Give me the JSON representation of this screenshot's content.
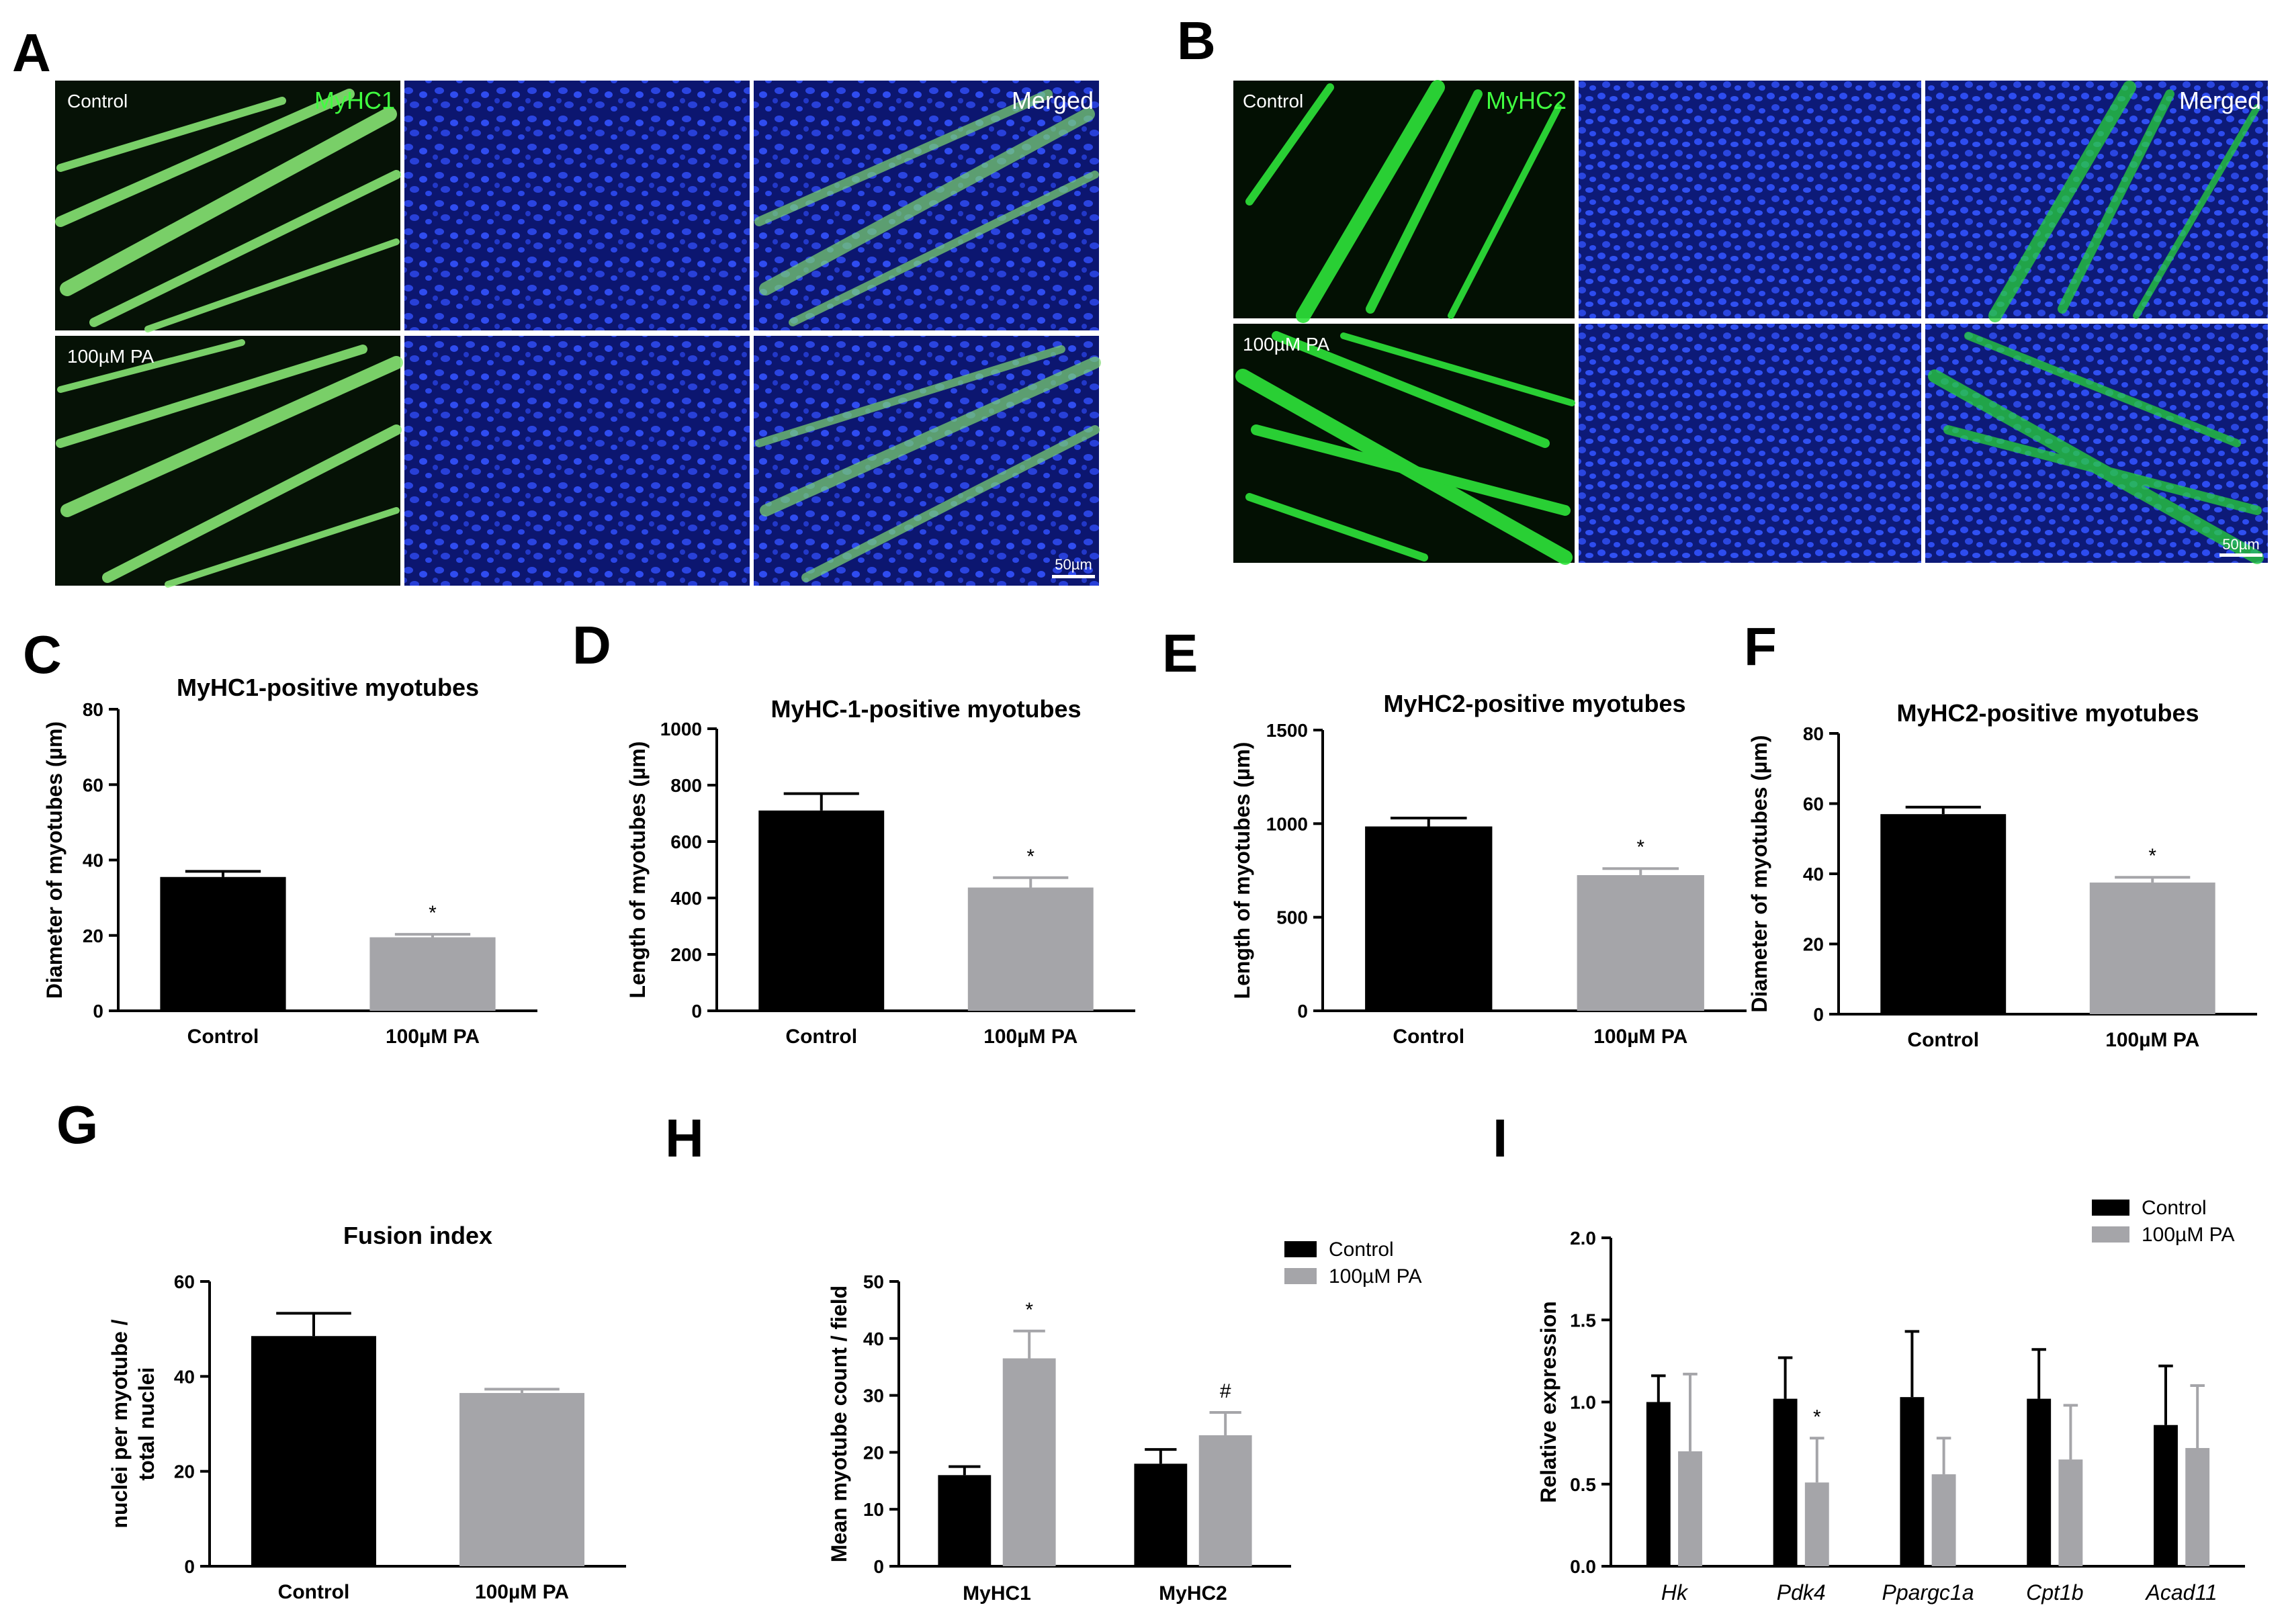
{
  "colors": {
    "control": "#000000",
    "pa": "#a5a5a9",
    "green": "#3cf050",
    "blue": "#1a2bb8"
  },
  "panel_labels": [
    "A",
    "B",
    "C",
    "D",
    "E",
    "F",
    "G",
    "H",
    "I"
  ],
  "micrographs": {
    "A": {
      "marker": "MyHC1",
      "row_labels": [
        "Control",
        "100µM PA"
      ],
      "merged": "Merged",
      "scale_bar": "50µm"
    },
    "B": {
      "marker": "MyHC2",
      "row_labels": [
        "Control",
        "100µM PA"
      ],
      "merged": "Merged",
      "scale_bar": "50µm"
    }
  },
  "chart_data": [
    {
      "id": "C",
      "type": "bar",
      "title": "MyHC1-positive myotubes",
      "ylabel": "Diameter of myotubes (µm)",
      "categories": [
        "Control",
        "100µM PA"
      ],
      "values": [
        35.5,
        19.5
      ],
      "errors": [
        1.5,
        0.8
      ],
      "ylim": [
        0,
        80
      ],
      "yticks": [
        0,
        20,
        40,
        60,
        80
      ],
      "significance": [
        "",
        "*"
      ]
    },
    {
      "id": "D",
      "type": "bar",
      "title": "MyHC-1-positive myotubes",
      "ylabel": "Length of myotubes (µm)",
      "categories": [
        "Control",
        "100µM PA"
      ],
      "values": [
        710,
        437
      ],
      "errors": [
        60,
        35
      ],
      "ylim": [
        0,
        1000
      ],
      "yticks": [
        0,
        200,
        400,
        600,
        800,
        1000
      ],
      "significance": [
        "",
        "*"
      ]
    },
    {
      "id": "E",
      "type": "bar",
      "title": "MyHC2-positive myotubes",
      "ylabel": "Length of myotubes (µm)",
      "categories": [
        "Control",
        "100µM PA"
      ],
      "values": [
        985,
        725
      ],
      "errors": [
        45,
        35
      ],
      "ylim": [
        0,
        1500
      ],
      "yticks": [
        0,
        500,
        1000,
        1500
      ],
      "significance": [
        "",
        "*"
      ]
    },
    {
      "id": "F",
      "type": "bar",
      "title": "MyHC2-positive myotubes",
      "ylabel": "Diameter of myotubes (µm)",
      "categories": [
        "Control",
        "100µM PA"
      ],
      "values": [
        57,
        37.5
      ],
      "errors": [
        2,
        1.5
      ],
      "ylim": [
        0,
        80
      ],
      "yticks": [
        0,
        20,
        40,
        60,
        80
      ],
      "significance": [
        "",
        "*"
      ]
    },
    {
      "id": "G",
      "type": "bar",
      "title": "Fusion index",
      "ylabel": [
        "nuclei per myotube /",
        "total nuclei"
      ],
      "categories": [
        "Control",
        "100µM PA"
      ],
      "values": [
        48.5,
        36.5
      ],
      "errors": [
        4.8,
        0.8
      ],
      "ylim": [
        0,
        60
      ],
      "yticks": [
        0,
        20,
        40,
        60
      ],
      "significance": [
        "",
        ""
      ]
    },
    {
      "id": "H",
      "type": "bar",
      "title": "",
      "ylabel": "Mean myotube count / field",
      "categories": [
        "MyHC1",
        "MyHC2"
      ],
      "ylim": [
        0,
        50
      ],
      "yticks": [
        0,
        10,
        20,
        30,
        40,
        50
      ],
      "legend": "top-right",
      "series": [
        {
          "name": "Control",
          "values": [
            16,
            18
          ],
          "errors": [
            1.5,
            2.5
          ],
          "significance": [
            "",
            ""
          ]
        },
        {
          "name": "100µM PA",
          "values": [
            36.5,
            23
          ],
          "errors": [
            4.8,
            4
          ],
          "significance": [
            "*",
            "#"
          ]
        }
      ]
    },
    {
      "id": "I",
      "type": "bar",
      "title": "",
      "ylabel": "Relative expression",
      "categories": [
        "Hk",
        "Pdk4",
        "Ppargc1a",
        "Cpt1b",
        "Acad11"
      ],
      "ylim": [
        0,
        2.0
      ],
      "yticks": [
        "0.0",
        "0.5",
        "1.0",
        "1.5",
        "2.0"
      ],
      "legend": "top-right",
      "series": [
        {
          "name": "Control",
          "values": [
            1.0,
            1.02,
            1.03,
            1.02,
            0.86
          ],
          "errors": [
            0.16,
            0.25,
            0.4,
            0.3,
            0.36
          ],
          "significance": [
            "",
            "",
            "",
            "",
            ""
          ]
        },
        {
          "name": "100µM PA",
          "values": [
            0.7,
            0.51,
            0.56,
            0.65,
            0.72
          ],
          "errors": [
            0.47,
            0.27,
            0.22,
            0.33,
            0.38
          ],
          "significance": [
            "",
            "*",
            "",
            "",
            ""
          ]
        }
      ]
    }
  ]
}
